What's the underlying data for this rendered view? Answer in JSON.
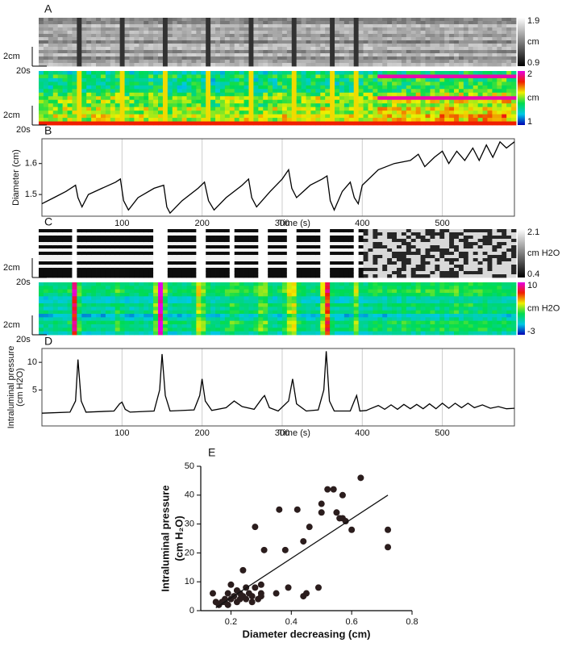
{
  "panel_labels": [
    "A",
    "B",
    "C",
    "D",
    "E"
  ],
  "heatmaps": [
    {
      "scale_bar": [
        "2cm",
        "20s"
      ],
      "colorbar": {
        "max": 1.9,
        "min": 0.9,
        "unit": "cm"
      }
    },
    {
      "scale_bar": [
        "2cm",
        "20s"
      ],
      "colorbar": {
        "max": 2,
        "min": 1,
        "unit": "cm"
      }
    },
    {
      "scale_bar": [
        "2cm",
        "20s"
      ],
      "colorbar": {
        "max": 2.1,
        "min": 0.4,
        "unit": "cm H2O"
      }
    },
    {
      "scale_bar": [
        "2cm",
        "20s"
      ],
      "colorbar": {
        "max": 10,
        "min": -3,
        "unit": "cm H2O"
      }
    }
  ],
  "chart_data": [
    {
      "type": "line",
      "ylabel": "Diameter (cm)",
      "xlabel": "Time (s)",
      "color": "#000000",
      "grid": true,
      "x": [
        0,
        15,
        30,
        42,
        45,
        50,
        58,
        75,
        92,
        98,
        102,
        108,
        120,
        140,
        152,
        156,
        160,
        175,
        195,
        203,
        208,
        215,
        230,
        250,
        258,
        262,
        268,
        285,
        300,
        308,
        312,
        318,
        335,
        350,
        356,
        360,
        365,
        375,
        385,
        390,
        395,
        400,
        420,
        440,
        460,
        470,
        478,
        490,
        500,
        508,
        518,
        528,
        538,
        546,
        555,
        563,
        572,
        580,
        590
      ],
      "values": [
        1.47,
        1.49,
        1.51,
        1.53,
        1.49,
        1.46,
        1.5,
        1.52,
        1.54,
        1.55,
        1.48,
        1.45,
        1.49,
        1.52,
        1.53,
        1.46,
        1.44,
        1.48,
        1.52,
        1.54,
        1.48,
        1.45,
        1.49,
        1.53,
        1.55,
        1.49,
        1.46,
        1.51,
        1.55,
        1.58,
        1.52,
        1.49,
        1.53,
        1.55,
        1.56,
        1.48,
        1.45,
        1.51,
        1.54,
        1.49,
        1.47,
        1.53,
        1.58,
        1.6,
        1.61,
        1.63,
        1.59,
        1.62,
        1.64,
        1.6,
        1.64,
        1.61,
        1.65,
        1.61,
        1.66,
        1.62,
        1.67,
        1.65,
        1.67
      ],
      "xlim": [
        0,
        590
      ],
      "ylim": [
        1.43,
        1.68
      ],
      "xticks": [
        100,
        200,
        300,
        400,
        500
      ],
      "yticks": [
        1.5,
        1.6
      ]
    },
    {
      "type": "line",
      "ylabel": [
        "Intraluminal pressure",
        "(cm H2O)"
      ],
      "xlabel": "Time (s)",
      "color": "#000000",
      "grid": true,
      "x": [
        0,
        35,
        42,
        45,
        49,
        55,
        90,
        97,
        100,
        104,
        110,
        140,
        147,
        150,
        154,
        160,
        190,
        197,
        200,
        204,
        212,
        230,
        240,
        250,
        265,
        275,
        278,
        284,
        295,
        308,
        313,
        318,
        330,
        345,
        352,
        355,
        359,
        365,
        385,
        390,
        393,
        397,
        405,
        410,
        420,
        428,
        436,
        444,
        452,
        460,
        468,
        476,
        484,
        492,
        500,
        508,
        516,
        524,
        532,
        540,
        550,
        560,
        570,
        580,
        590
      ],
      "values": [
        0.8,
        1.0,
        3,
        10.5,
        3,
        1.0,
        1.2,
        2.5,
        2.8,
        1.5,
        1.0,
        1.2,
        5,
        11.5,
        4,
        1.2,
        1.4,
        4,
        7,
        3,
        1.3,
        1.8,
        3.0,
        2,
        1.5,
        3.5,
        4,
        1.8,
        1.2,
        3,
        7,
        2.5,
        1.2,
        1.4,
        5,
        12,
        3,
        1.2,
        1.2,
        3,
        4,
        1.2,
        1.3,
        1.6,
        2.2,
        1.5,
        2.3,
        1.5,
        2.4,
        1.6,
        2.4,
        1.6,
        2.5,
        1.6,
        2.6,
        1.7,
        2.6,
        1.8,
        2.6,
        1.8,
        2.3,
        1.7,
        2.0,
        1.6,
        1.7
      ],
      "xlim": [
        0,
        590
      ],
      "ylim": [
        -1.5,
        12.5
      ],
      "xticks": [
        100,
        200,
        300,
        400,
        500
      ],
      "yticks": [
        5,
        10
      ]
    },
    {
      "type": "scatter",
      "xlabel": "Diameter decreasing (cm)",
      "ylabel": [
        "Intraluminal pressure",
        "(cm H₂O)"
      ],
      "color": "#2b1d1d",
      "x": [
        0.14,
        0.15,
        0.16,
        0.17,
        0.18,
        0.18,
        0.19,
        0.19,
        0.2,
        0.2,
        0.21,
        0.22,
        0.22,
        0.23,
        0.23,
        0.24,
        0.24,
        0.25,
        0.25,
        0.26,
        0.27,
        0.27,
        0.28,
        0.28,
        0.29,
        0.3,
        0.3,
        0.3,
        0.31,
        0.35,
        0.36,
        0.38,
        0.39,
        0.42,
        0.44,
        0.44,
        0.46,
        0.49,
        0.5,
        0.5,
        0.52,
        0.54,
        0.55,
        0.56,
        0.57,
        0.57,
        0.58,
        0.6,
        0.63,
        0.72,
        0.72,
        0.45
      ],
      "values": [
        6,
        3,
        2,
        3,
        4,
        3,
        6,
        2,
        9,
        4,
        5,
        7,
        3,
        6,
        4,
        14,
        5,
        8,
        4,
        6,
        3,
        5,
        29,
        8,
        4,
        6,
        9,
        5,
        21,
        6,
        35,
        21,
        8,
        35,
        5,
        24,
        29,
        8,
        37,
        34,
        42,
        42,
        34,
        32,
        32,
        40,
        31,
        28,
        46,
        28,
        22,
        6
      ],
      "fit": {
        "x": [
          0.15,
          0.72
        ],
        "y": [
          1,
          40
        ]
      },
      "xlim": [
        0.1,
        0.8
      ],
      "ylim": [
        0,
        50
      ],
      "xticks": [
        0.2,
        0.4,
        0.6,
        0.8
      ],
      "yticks": [
        0,
        10,
        20,
        30,
        40,
        50
      ]
    }
  ]
}
